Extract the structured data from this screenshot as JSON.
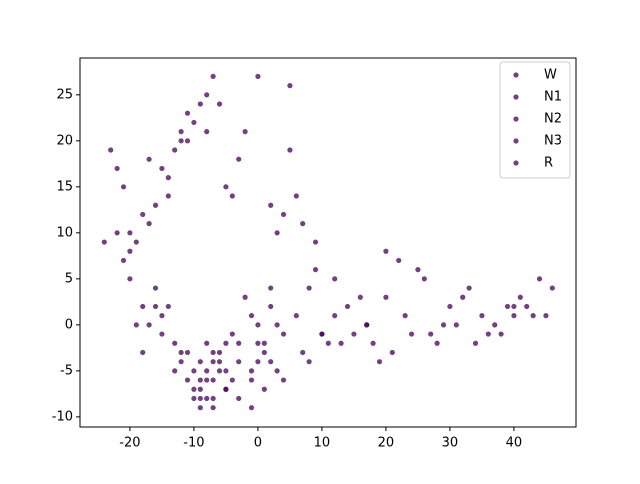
{
  "chart_data": {
    "type": "scatter",
    "xlim": [
      -27.8,
      49.7
    ],
    "ylim": [
      -11.1,
      29.0
    ],
    "xticks": [
      -20,
      -10,
      0,
      10,
      20,
      30,
      40
    ],
    "yticks": [
      -10,
      -5,
      0,
      5,
      10,
      15,
      20,
      25
    ],
    "grid": false,
    "legend": "upper right",
    "series": [
      {
        "name": "W",
        "color": "#440154",
        "x": [
          -8,
          -7,
          -9,
          -6,
          -10,
          -5,
          -3,
          -1,
          0,
          2,
          -12,
          -15,
          -18,
          -20,
          -22,
          -14,
          -11,
          -4,
          5,
          8,
          12,
          15,
          20,
          25,
          30,
          35,
          40,
          44,
          -9,
          -7
        ],
        "values": [
          -5,
          -6,
          -4,
          -3,
          -7,
          -2,
          -4,
          -6,
          0,
          2,
          -3,
          1,
          2,
          8,
          10,
          16,
          23,
          14,
          26,
          4,
          1,
          -1,
          3,
          6,
          2,
          1,
          2,
          5,
          -8,
          -9
        ]
      },
      {
        "name": "N1",
        "color": "#440154",
        "x": [
          -6,
          -8,
          -10,
          -7,
          -4,
          -2,
          1,
          3,
          6,
          -13,
          -16,
          -19,
          -21,
          -23,
          -17,
          -12,
          -9,
          -3,
          0,
          4,
          10,
          14,
          18,
          22,
          27,
          32,
          37,
          42,
          46,
          -5
        ],
        "values": [
          -4,
          -6,
          -5,
          -8,
          -1,
          3,
          -3,
          -5,
          1,
          -2,
          4,
          9,
          15,
          19,
          18,
          21,
          24,
          18,
          27,
          12,
          -1,
          2,
          -2,
          7,
          -1,
          3,
          0,
          2,
          4,
          -7
        ]
      },
      {
        "name": "N2",
        "color": "#440154",
        "x": [
          -7,
          -9,
          -11,
          -5,
          -3,
          0,
          2,
          4,
          7,
          -14,
          -17,
          -20,
          -24,
          -18,
          -15,
          -11,
          -8,
          -2,
          2,
          5,
          9,
          13,
          17,
          21,
          26,
          31,
          36,
          39,
          43,
          -1
        ],
        "values": [
          -3,
          -7,
          -6,
          -5,
          -8,
          -2,
          -4,
          -1,
          -3,
          2,
          0,
          5,
          9,
          12,
          17,
          20,
          25,
          21,
          13,
          19,
          6,
          -2,
          0,
          -3,
          5,
          0,
          -1,
          2,
          1,
          -9
        ]
      },
      {
        "name": "N3",
        "color": "#440154",
        "x": [
          -8,
          -6,
          -10,
          -12,
          -4,
          -1,
          1,
          3,
          8,
          -15,
          -18,
          -21,
          -22,
          -16,
          -13,
          -10,
          -7,
          -5,
          3,
          6,
          11,
          16,
          19,
          23,
          28,
          33,
          38,
          41,
          -9,
          0
        ],
        "values": [
          -2,
          -5,
          -8,
          -4,
          -6,
          -5,
          -7,
          0,
          -4,
          -1,
          -3,
          7,
          17,
          13,
          19,
          22,
          27,
          15,
          10,
          14,
          -2,
          3,
          -4,
          1,
          -2,
          4,
          -1,
          3,
          -9,
          -4
        ]
      },
      {
        "name": "R",
        "color": "#440154",
        "x": [
          -9,
          -7,
          -11,
          -5,
          -3,
          -1,
          1,
          4,
          10,
          -13,
          -16,
          -19,
          -20,
          -17,
          -14,
          -12,
          -8,
          -6,
          7,
          9,
          12,
          17,
          20,
          24,
          29,
          34,
          40,
          45,
          -8,
          2
        ],
        "values": [
          -6,
          -4,
          -3,
          -7,
          -2,
          1,
          -2,
          -6,
          -1,
          -5,
          2,
          0,
          10,
          11,
          14,
          20,
          21,
          24,
          11,
          9,
          5,
          0,
          8,
          -1,
          0,
          -2,
          1,
          1,
          -8,
          4
        ]
      }
    ]
  }
}
